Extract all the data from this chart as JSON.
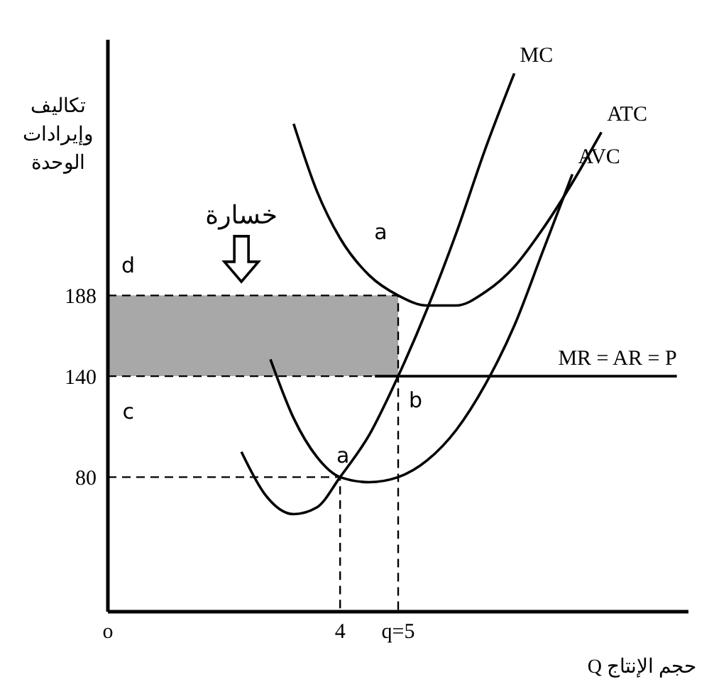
{
  "chart_data": {
    "type": "line",
    "ylabel": "تكاليف\nوإيرادات\nالوحدة",
    "xlabel": "حجم الإنتاج Q",
    "xlim": [
      0,
      10
    ],
    "ylim": [
      0,
      340
    ],
    "xticks": [
      {
        "value": 0,
        "label": "o"
      },
      4,
      {
        "value": 5,
        "label": "q=5"
      }
    ],
    "yticks": [
      80,
      140,
      188
    ],
    "grid": false,
    "marker": "none",
    "series": [
      {
        "name": "MC",
        "color": "#000000",
        "x": [
          2.3,
          2.7,
          3.2,
          3.6,
          4,
          4.5,
          5,
          5.5,
          6,
          6.5,
          7
        ],
        "values": [
          95,
          70,
          58,
          62,
          80,
          105,
          140,
          180,
          225,
          275,
          320
        ]
      },
      {
        "name": "ATC",
        "color": "#000000",
        "x": [
          3.2,
          3.6,
          4,
          4.5,
          5,
          5.5,
          6,
          6.5,
          7,
          7.5,
          8,
          8.5
        ],
        "values": [
          290,
          250,
          222,
          200,
          188,
          182,
          182,
          190,
          205,
          228,
          255,
          285
        ]
      },
      {
        "name": "AVC",
        "color": "#000000",
        "x": [
          2.8,
          3.2,
          3.6,
          4,
          4.5,
          5,
          5.5,
          6,
          6.5,
          7,
          7.5,
          8
        ],
        "values": [
          150,
          115,
          92,
          80,
          77,
          80,
          90,
          108,
          135,
          170,
          215,
          260
        ]
      },
      {
        "name": "MR = AR = P",
        "color": "#000000",
        "x": [
          4.6,
          9.8
        ],
        "values": [
          140,
          140
        ]
      },
      {
        "color": "#000000",
        "line_style": "dashed",
        "x": [
          0,
          5,
          5
        ],
        "values": [
          188,
          188,
          0
        ]
      },
      {
        "color": "#000000",
        "line_style": "dashed",
        "x": [
          0,
          5
        ],
        "values": [
          140,
          140
        ]
      },
      {
        "color": "#000000",
        "line_style": "dashed",
        "x": [
          0,
          4,
          4
        ],
        "values": [
          80,
          80,
          0
        ]
      }
    ],
    "bands": [
      {
        "axis": "y",
        "from": 140,
        "to": 188,
        "color": "#a8a8a8"
      }
    ],
    "annotations": [
      "خسارة",
      "d",
      "c",
      "a",
      "a",
      "b"
    ]
  }
}
